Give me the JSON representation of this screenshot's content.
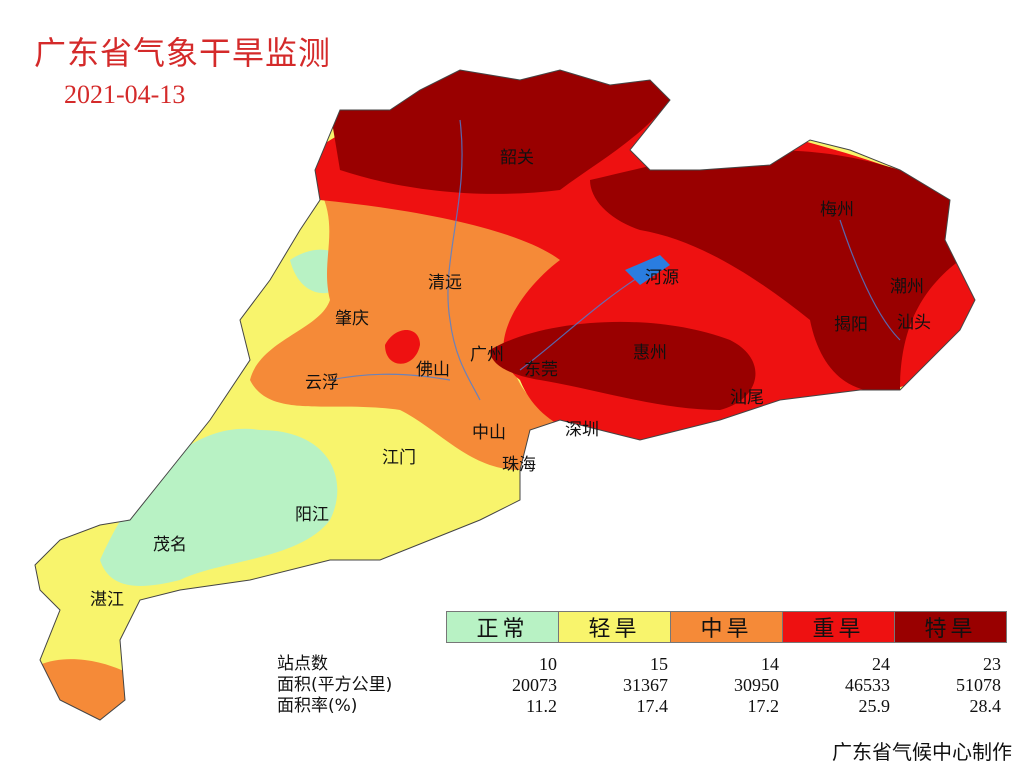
{
  "header": {
    "title": "广东省气象干旱监测",
    "date": "2021-04-13"
  },
  "legend": [
    {
      "label": "正常",
      "color": "#b8f2c4"
    },
    {
      "label": "轻旱",
      "color": "#f8f46c"
    },
    {
      "label": "中旱",
      "color": "#f58a38"
    },
    {
      "label": "重旱",
      "color": "#ee1111"
    },
    {
      "label": "特旱",
      "color": "#990000"
    }
  ],
  "stats": {
    "rows": [
      {
        "label": "站点数",
        "values": [
          "10",
          "15",
          "14",
          "24",
          "23"
        ]
      },
      {
        "label": "面积(平方公里)",
        "values": [
          "20073",
          "31367",
          "30950",
          "46533",
          "51078"
        ]
      },
      {
        "label": "面积率(%)",
        "values": [
          "11.2",
          "17.4",
          "17.2",
          "25.9",
          "28.4"
        ]
      }
    ]
  },
  "cities": [
    "韶关",
    "梅州",
    "河源",
    "潮州",
    "清远",
    "肇庆",
    "揭阳",
    "汕头",
    "广州",
    "东莞",
    "惠州",
    "佛山",
    "云浮",
    "汕尾",
    "中山",
    "深圳",
    "江门",
    "珠海",
    "阳江",
    "茂名",
    "湛江"
  ],
  "credit": "广东省气候中心制作"
}
